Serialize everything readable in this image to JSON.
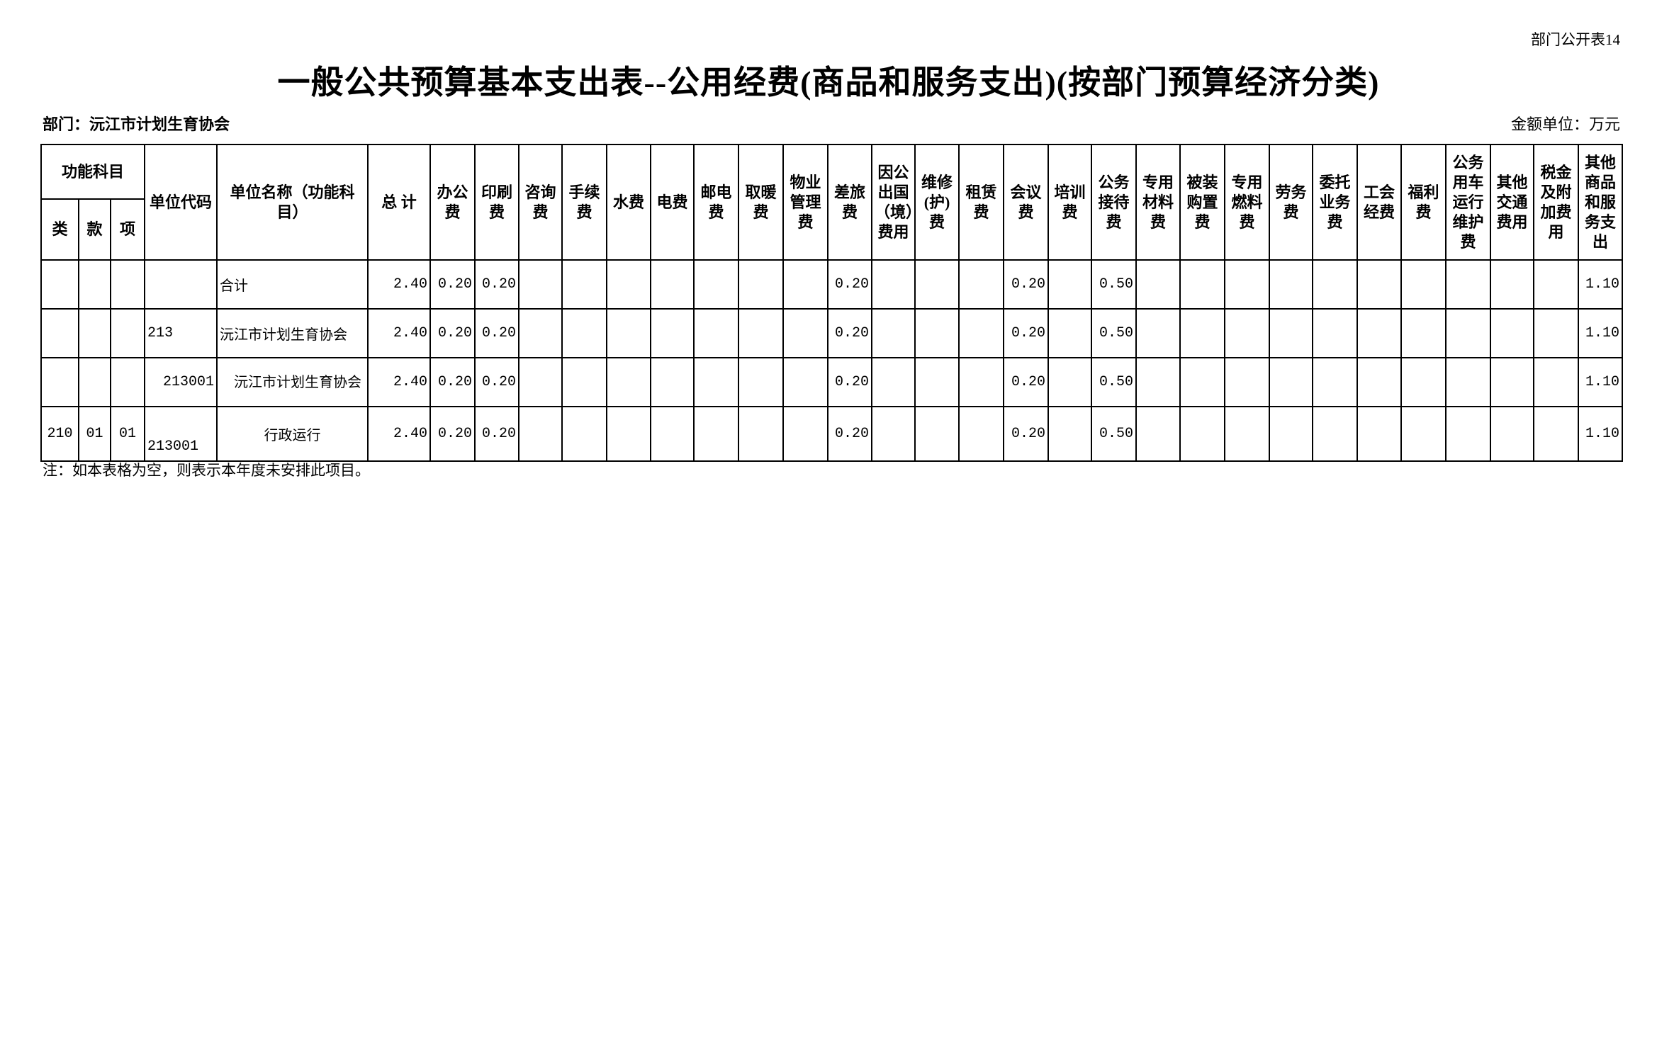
{
  "form_number": "部门公开表14",
  "title": "一般公共预算基本支出表--公用经费(商品和服务支出)(按部门预算经济分类)",
  "department": "部门：沅江市计划生育协会",
  "unit": "金额单位：万元",
  "note": "注：如本表格为空，则表示本年度未安排此项目。",
  "header": {
    "func_subject": "功能科目",
    "lei": "类",
    "kuan": "款",
    "xiang": "项",
    "unit_code": "单位代码",
    "unit_name": "单位名称（功能科目）",
    "total": "总 计",
    "items": [
      "办公费",
      "印刷费",
      "咨询费",
      "手续费",
      "水费",
      "电费",
      "邮电费",
      "取暖费",
      "物业管理费",
      "差旅费",
      "因公出国（境）费用",
      "维修(护)费",
      "租赁费",
      "会议费",
      "培训费",
      "公务接待费",
      "专用材料费",
      "被装购置费",
      "专用燃料费",
      "劳务费",
      "委托业务费",
      "工会经费",
      "福利费",
      "公务用车运行维护费",
      "其他交通费用",
      "税金及附加费用",
      "其他商品和服务支出"
    ]
  },
  "rows": [
    {
      "lei": "",
      "kuan": "",
      "xiang": "",
      "code": "",
      "name": "合计",
      "total": "2.40",
      "values": [
        "0.20",
        "0.20",
        "",
        "",
        "",
        "",
        "",
        "",
        "",
        "0.20",
        "",
        "",
        "",
        "0.20",
        "",
        "0.50",
        "",
        "",
        "",
        "",
        "",
        "",
        "",
        "",
        "",
        "",
        "1.10"
      ]
    },
    {
      "lei": "",
      "kuan": "",
      "xiang": "",
      "code": "213",
      "name": "沅江市计划生育协会",
      "total": "2.40",
      "values": [
        "0.20",
        "0.20",
        "",
        "",
        "",
        "",
        "",
        "",
        "",
        "0.20",
        "",
        "",
        "",
        "0.20",
        "",
        "0.50",
        "",
        "",
        "",
        "",
        "",
        "",
        "",
        "",
        "",
        "",
        "1.10"
      ]
    },
    {
      "lei": "",
      "kuan": "",
      "xiang": "",
      "code": "213001",
      "name": "　沅江市计划生育协会",
      "total": "2.40",
      "values": [
        "0.20",
        "0.20",
        "",
        "",
        "",
        "",
        "",
        "",
        "",
        "0.20",
        "",
        "",
        "",
        "0.20",
        "",
        "0.50",
        "",
        "",
        "",
        "",
        "",
        "",
        "",
        "",
        "",
        "",
        "1.10"
      ]
    },
    {
      "lei": "210",
      "kuan": "01",
      "xiang": "01",
      "code": "213001",
      "name": "行政运行",
      "total": "2.40",
      "values": [
        "0.20",
        "0.20",
        "",
        "",
        "",
        "",
        "",
        "",
        "",
        "0.20",
        "",
        "",
        "",
        "0.20",
        "",
        "0.50",
        "",
        "",
        "",
        "",
        "",
        "",
        "",
        "",
        "",
        "",
        "1.10"
      ]
    }
  ]
}
